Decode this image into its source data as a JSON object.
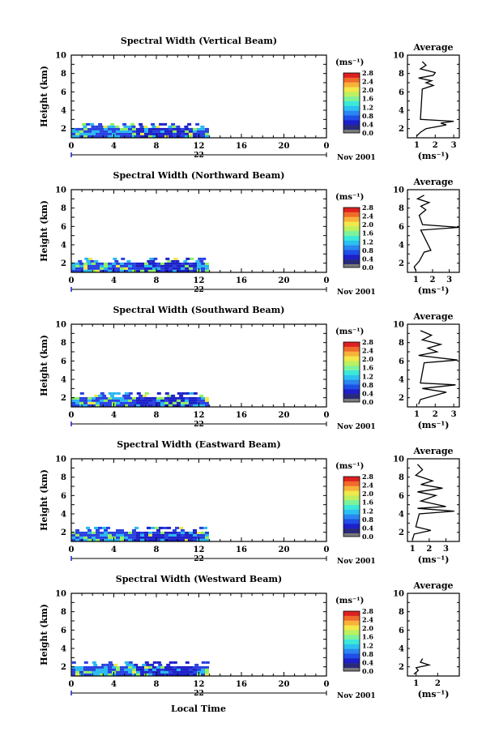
{
  "colors": {
    "colorbar": [
      "#2a2a7a",
      "#1d20c8",
      "#1f4fe8",
      "#2a86f0",
      "#2cc0f0",
      "#3ce8d8",
      "#7df29a",
      "#bdf060",
      "#f2e84a",
      "#f8b13a",
      "#f06a2a",
      "#dd2020"
    ],
    "colorbar_bottom": "#7a7a7a",
    "field_low": "#2840e0",
    "field_mid": "#28b8f0",
    "field_high": "#90f060"
  },
  "figure": {
    "xlabel": "Local Time",
    "colorbar_unit": "(ms⁻¹)",
    "colorbar_ticks": [
      "2.8",
      "2.4",
      "2.0",
      "1.6",
      "1.2",
      "0.8",
      "0.4",
      "0.0"
    ],
    "date_label": "Nov 2001",
    "avg_title": "Average",
    "avg_xlabel": "(ms⁻¹)",
    "ylabel": "Height (km)"
  },
  "chart_data": [
    {
      "type": "heatmap",
      "title": "Spectral Width (Vertical Beam)",
      "xlabel": "",
      "ylabel": "Height (km)",
      "xlim": [
        0,
        24
      ],
      "ylim": [
        1,
        10
      ],
      "xticks": [
        "0",
        "4",
        "8",
        "12",
        "16",
        "20",
        "0"
      ],
      "yticks": [
        "2",
        "4",
        "6",
        "8",
        "10"
      ],
      "day_label": "22",
      "data_extent": {
        "x": [
          0,
          12.8
        ],
        "y": [
          1.2,
          2.6
        ]
      },
      "colorbar": {
        "min": 0.0,
        "max": 2.8,
        "ticks": [
          "2.8",
          "2.4",
          "2.0",
          "1.6",
          "1.2",
          "0.8",
          "0.4",
          "0.0"
        ]
      },
      "average_profile": {
        "xlim": [
          0.5,
          3.3
        ],
        "xticks": [
          "1",
          "2",
          "3"
        ],
        "points": [
          [
            1.0,
            1.2
          ],
          [
            1.2,
            1.6
          ],
          [
            1.5,
            2.0
          ],
          [
            2.6,
            2.4
          ],
          [
            2.3,
            2.6
          ],
          [
            3.0,
            2.8
          ],
          [
            1.2,
            3.0
          ],
          [
            1.3,
            6.3
          ],
          [
            1.9,
            6.7
          ],
          [
            1.5,
            7.0
          ],
          [
            1.8,
            7.2
          ],
          [
            1.1,
            7.5
          ],
          [
            1.9,
            7.8
          ],
          [
            2.0,
            8.1
          ],
          [
            1.2,
            8.5
          ],
          [
            1.5,
            8.9
          ],
          [
            1.3,
            9.3
          ]
        ]
      }
    },
    {
      "type": "heatmap",
      "title": "Spectral Width (Northward Beam)",
      "xlabel": "",
      "ylabel": "Height (km)",
      "xlim": [
        0,
        24
      ],
      "ylim": [
        1,
        10
      ],
      "xticks": [
        "0",
        "4",
        "8",
        "12",
        "16",
        "20",
        "0"
      ],
      "yticks": [
        "2",
        "4",
        "6",
        "8",
        "10"
      ],
      "day_label": "22",
      "data_extent": {
        "x": [
          0,
          12.8
        ],
        "y": [
          1.2,
          2.6
        ]
      },
      "colorbar": {
        "min": 0.0,
        "max": 2.8,
        "ticks": [
          "2.8",
          "2.4",
          "2.0",
          "1.6",
          "1.2",
          "0.8",
          "0.4",
          "0.0"
        ]
      },
      "average_profile": {
        "xlim": [
          0.5,
          3.6
        ],
        "xticks": [
          "1",
          "2",
          "3"
        ],
        "points": [
          [
            1.0,
            1.2
          ],
          [
            0.9,
            1.6
          ],
          [
            1.2,
            2.2
          ],
          [
            1.5,
            3.2
          ],
          [
            1.9,
            3.4
          ],
          [
            1.3,
            5.6
          ],
          [
            3.6,
            5.9
          ],
          [
            1.4,
            6.2
          ],
          [
            1.2,
            7.2
          ],
          [
            1.6,
            7.8
          ],
          [
            1.3,
            8.2
          ],
          [
            1.8,
            8.6
          ],
          [
            1.1,
            9.0
          ],
          [
            1.5,
            9.4
          ]
        ]
      }
    },
    {
      "type": "heatmap",
      "title": "Spectral Width (Southward Beam)",
      "xlabel": "",
      "ylabel": "Height (km)",
      "xlim": [
        0,
        24
      ],
      "ylim": [
        1,
        10
      ],
      "xticks": [
        "0",
        "4",
        "8",
        "12",
        "16",
        "20",
        "0"
      ],
      "yticks": [
        "2",
        "4",
        "6",
        "8",
        "10"
      ],
      "day_label": "22",
      "data_extent": {
        "x": [
          0,
          12.8
        ],
        "y": [
          1.2,
          2.6
        ]
      },
      "colorbar": {
        "min": 0.0,
        "max": 2.8,
        "ticks": [
          "2.8",
          "2.4",
          "2.0",
          "1.6",
          "1.2",
          "0.8",
          "0.4",
          "0.0"
        ]
      },
      "average_profile": {
        "xlim": [
          0.5,
          3.3
        ],
        "xticks": [
          "1",
          "2",
          "3"
        ],
        "points": [
          [
            1.1,
            1.3
          ],
          [
            1.2,
            1.8
          ],
          [
            2.6,
            2.6
          ],
          [
            1.3,
            3.0
          ],
          [
            3.1,
            3.4
          ],
          [
            1.2,
            3.6
          ],
          [
            1.4,
            5.8
          ],
          [
            3.2,
            6.1
          ],
          [
            1.1,
            6.6
          ],
          [
            2.1,
            7.0
          ],
          [
            1.6,
            7.4
          ],
          [
            2.3,
            7.8
          ],
          [
            1.3,
            8.3
          ],
          [
            1.8,
            8.8
          ],
          [
            1.2,
            9.3
          ]
        ]
      }
    },
    {
      "type": "heatmap",
      "title": "Spectral Width (Eastward Beam)",
      "xlabel": "",
      "ylabel": "Height (km)",
      "xlim": [
        0,
        24
      ],
      "ylim": [
        1,
        10
      ],
      "xticks": [
        "0",
        "4",
        "8",
        "12",
        "16",
        "20",
        "0"
      ],
      "yticks": [
        "2",
        "4",
        "6",
        "8",
        "10"
      ],
      "day_label": "22",
      "data_extent": {
        "x": [
          0,
          12.8
        ],
        "y": [
          1.2,
          2.6
        ]
      },
      "colorbar": {
        "min": 0.0,
        "max": 2.8,
        "ticks": [
          "2.8",
          "2.4",
          "2.0",
          "1.6",
          "1.2",
          "0.8",
          "0.4",
          "0.0"
        ]
      },
      "average_profile": {
        "xlim": [
          0.7,
          3.8
        ],
        "xticks": [
          "1",
          "2",
          "3"
        ],
        "points": [
          [
            1.0,
            1.2
          ],
          [
            1.1,
            1.8
          ],
          [
            2.1,
            2.2
          ],
          [
            1.2,
            2.6
          ],
          [
            1.4,
            4.0
          ],
          [
            3.5,
            4.3
          ],
          [
            1.3,
            4.6
          ],
          [
            3.0,
            4.8
          ],
          [
            1.5,
            5.4
          ],
          [
            2.4,
            6.0
          ],
          [
            1.3,
            6.4
          ],
          [
            2.8,
            6.8
          ],
          [
            1.5,
            7.2
          ],
          [
            2.2,
            7.6
          ],
          [
            1.2,
            8.2
          ],
          [
            1.6,
            8.8
          ],
          [
            1.3,
            9.4
          ]
        ]
      }
    },
    {
      "type": "heatmap",
      "title": "Spectral Width (Westward Beam)",
      "xlabel": "Local Time",
      "ylabel": "Height (km)",
      "xlim": [
        0,
        24
      ],
      "ylim": [
        1,
        10
      ],
      "xticks": [
        "0",
        "4",
        "8",
        "12",
        "16",
        "20",
        "0"
      ],
      "yticks": [
        "2",
        "4",
        "6",
        "8",
        "10"
      ],
      "day_label": "22",
      "data_extent": {
        "x": [
          0,
          12.8
        ],
        "y": [
          1.2,
          2.6
        ]
      },
      "colorbar": {
        "min": 0.0,
        "max": 2.8,
        "ticks": [
          "2.8",
          "2.4",
          "2.0",
          "1.6",
          "1.2",
          "0.8",
          "0.4",
          "0.0"
        ]
      },
      "average_profile": {
        "xlim": [
          0.6,
          3.0
        ],
        "xticks": [
          "1",
          "2"
        ],
        "points": [
          [
            0.9,
            1.2
          ],
          [
            1.1,
            1.6
          ],
          [
            1.0,
            1.9
          ],
          [
            1.6,
            2.2
          ],
          [
            1.2,
            2.5
          ],
          [
            1.3,
            2.9
          ]
        ]
      }
    }
  ]
}
